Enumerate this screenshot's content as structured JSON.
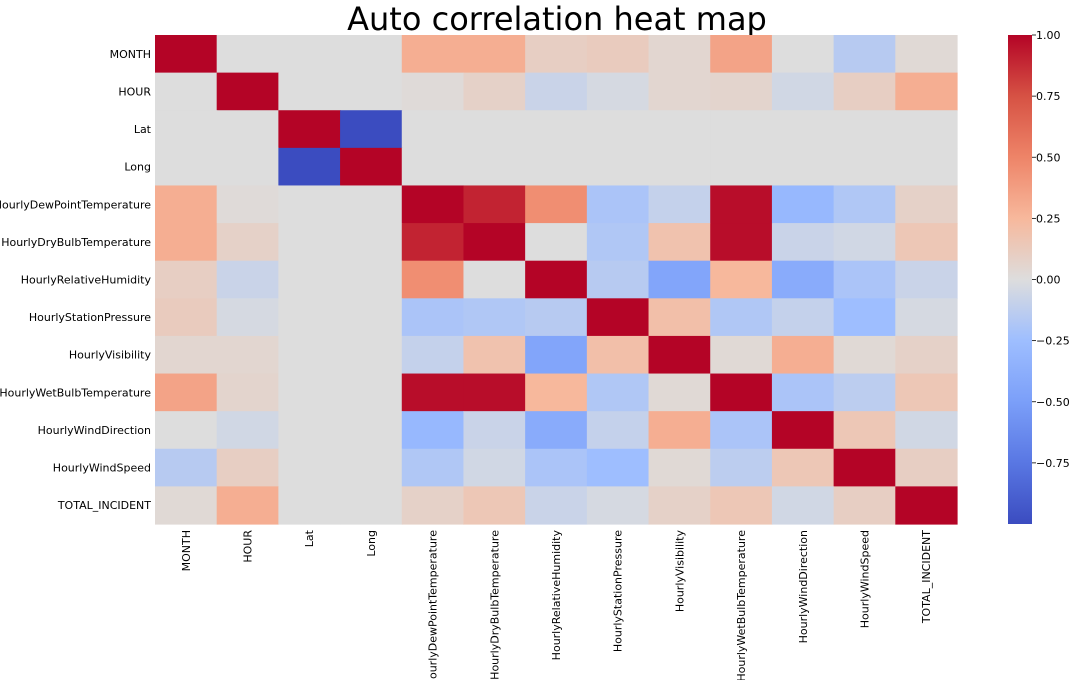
{
  "chart_data": {
    "type": "heatmap",
    "title": "Auto correlation heat map",
    "xlabel": "",
    "ylabel": "",
    "colormap": "coolwarm",
    "colors": {
      "low": "#3b4cc0",
      "mid": "#dddddd",
      "high": "#b40426"
    },
    "vmin": -1.0,
    "vmax": 1.0,
    "colorbar_ticks": [
      "1.00",
      "0.75",
      "0.50",
      "0.25",
      "0.00",
      "−0.25",
      "−0.50",
      "−0.75"
    ],
    "colorbar_tick_values": [
      1.0,
      0.75,
      0.5,
      0.25,
      0.0,
      -0.25,
      -0.5,
      -0.75
    ],
    "grid": false,
    "legend": "colorbar-right",
    "labels": [
      "MONTH",
      "HOUR",
      "Lat",
      "Long",
      "HourlyDewPointTemperature",
      "HourlyDryBulbTemperature",
      "HourlyRelativeHumidity",
      "HourlyStationPressure",
      "HourlyVisibility",
      "HourlyWetBulbTemperature",
      "HourlyWindDirection",
      "HourlyWindSpeed",
      "TOTAL_INCIDENT"
    ],
    "values": [
      [
        1.0,
        0.0,
        0.0,
        0.0,
        0.3,
        0.3,
        0.1,
        0.12,
        0.05,
        0.35,
        0.0,
        -0.15,
        0.03
      ],
      [
        0.0,
        1.0,
        0.0,
        0.0,
        0.02,
        0.08,
        -0.08,
        -0.03,
        0.05,
        0.06,
        -0.05,
        0.1,
        0.3
      ],
      [
        0.0,
        0.0,
        1.0,
        -1.0,
        0.0,
        0.0,
        0.0,
        0.0,
        0.0,
        0.0,
        0.0,
        0.0,
        0.0
      ],
      [
        0.0,
        0.0,
        -1.0,
        1.0,
        0.0,
        0.0,
        0.0,
        0.0,
        0.0,
        0.0,
        0.0,
        0.0,
        0.0
      ],
      [
        0.3,
        0.02,
        0.0,
        0.0,
        1.0,
        0.9,
        0.45,
        -0.2,
        -0.1,
        0.97,
        -0.3,
        -0.18,
        0.08
      ],
      [
        0.3,
        0.08,
        0.0,
        0.0,
        0.9,
        1.0,
        0.0,
        -0.18,
        0.18,
        0.97,
        -0.08,
        -0.05,
        0.15
      ],
      [
        0.1,
        -0.08,
        0.0,
        0.0,
        0.45,
        0.0,
        1.0,
        -0.15,
        -0.45,
        0.25,
        -0.4,
        -0.2,
        -0.08
      ],
      [
        0.12,
        -0.03,
        0.0,
        0.0,
        -0.2,
        -0.18,
        -0.15,
        1.0,
        0.2,
        -0.18,
        -0.1,
        -0.25,
        -0.03
      ],
      [
        0.05,
        0.05,
        0.0,
        0.0,
        -0.1,
        0.18,
        -0.45,
        0.2,
        1.0,
        0.03,
        0.3,
        0.03,
        0.08
      ],
      [
        0.35,
        0.06,
        0.0,
        0.0,
        0.97,
        0.97,
        0.25,
        -0.18,
        0.03,
        1.0,
        -0.2,
        -0.13,
        0.15
      ],
      [
        0.0,
        -0.05,
        0.0,
        0.0,
        -0.3,
        -0.08,
        -0.4,
        -0.1,
        0.3,
        -0.2,
        1.0,
        0.15,
        -0.05
      ],
      [
        -0.15,
        0.1,
        0.0,
        0.0,
        -0.18,
        -0.05,
        -0.2,
        -0.25,
        0.03,
        -0.13,
        0.15,
        1.0,
        0.1
      ],
      [
        0.03,
        0.3,
        0.0,
        0.0,
        0.08,
        0.15,
        -0.08,
        -0.03,
        0.08,
        0.15,
        -0.05,
        0.1,
        1.0
      ]
    ]
  }
}
